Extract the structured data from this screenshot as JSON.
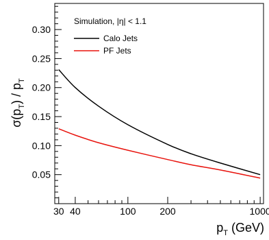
{
  "chart_data": {
    "type": "line",
    "ylabel_parts": [
      "σ(p",
      "T",
      ") / p",
      "T"
    ],
    "xlabel_parts": [
      "p",
      "T",
      " (GeV)"
    ],
    "xscale": "log",
    "xlim": [
      28,
      1060
    ],
    "ylim": [
      0.0,
      0.345
    ],
    "xticks": [
      30,
      40,
      100,
      200,
      1000
    ],
    "xtick_labels": [
      "30",
      "40",
      "100",
      "200",
      "1000"
    ],
    "yticks": [
      0.05,
      0.1,
      0.15,
      0.2,
      0.25,
      0.3
    ],
    "ytick_labels": [
      "0.05",
      "0.10",
      "0.15",
      "0.20",
      "0.25",
      "0.30"
    ],
    "legend_header": "Simulation,  |η| < 1.1",
    "legend_position": "top-right",
    "grid": false,
    "series": [
      {
        "name": "Calo Jets",
        "color": "#000000",
        "x": [
          30,
          40,
          60,
          100,
          200,
          300,
          500,
          1000
        ],
        "y": [
          0.231,
          0.2,
          0.168,
          0.136,
          0.102,
          0.086,
          0.07,
          0.05
        ]
      },
      {
        "name": "PF Jets",
        "color": "#e8120c",
        "x": [
          30,
          40,
          60,
          100,
          200,
          300,
          500,
          1000
        ],
        "y": [
          0.129,
          0.118,
          0.105,
          0.092,
          0.076,
          0.067,
          0.058,
          0.044
        ]
      }
    ]
  }
}
